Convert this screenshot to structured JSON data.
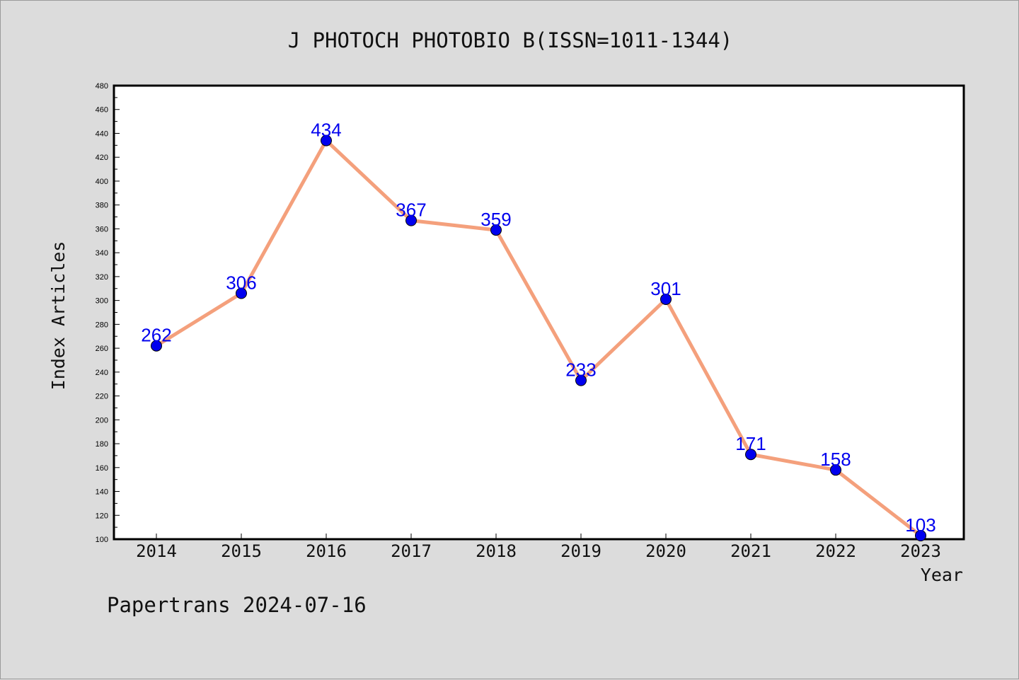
{
  "chart_data": {
    "type": "line",
    "title": "J PHOTOCH PHOTOBIO B(ISSN=1011-1344)",
    "xlabel": "Year",
    "ylabel": "Index Articles",
    "categories": [
      "2014",
      "2015",
      "2016",
      "2017",
      "2018",
      "2019",
      "2020",
      "2021",
      "2022",
      "2023"
    ],
    "series": [
      {
        "values": [
          262,
          306,
          434,
          367,
          359,
          233,
          301,
          171,
          158,
          103
        ]
      }
    ],
    "ylim": [
      100,
      480
    ],
    "y_ticks": [
      100,
      120,
      140,
      160,
      180,
      200,
      220,
      240,
      260,
      280,
      300,
      320,
      340,
      360,
      380,
      400,
      420,
      440,
      460,
      480
    ],
    "grid": false,
    "data_labels": true,
    "colors": {
      "line": "#f4a07c",
      "marker": "#0000ee",
      "label": "#0000ee",
      "background": "#dcdcdc",
      "plot_background": "#ffffff"
    }
  },
  "footer": {
    "watermark": "Papertrans 2024-07-16"
  }
}
